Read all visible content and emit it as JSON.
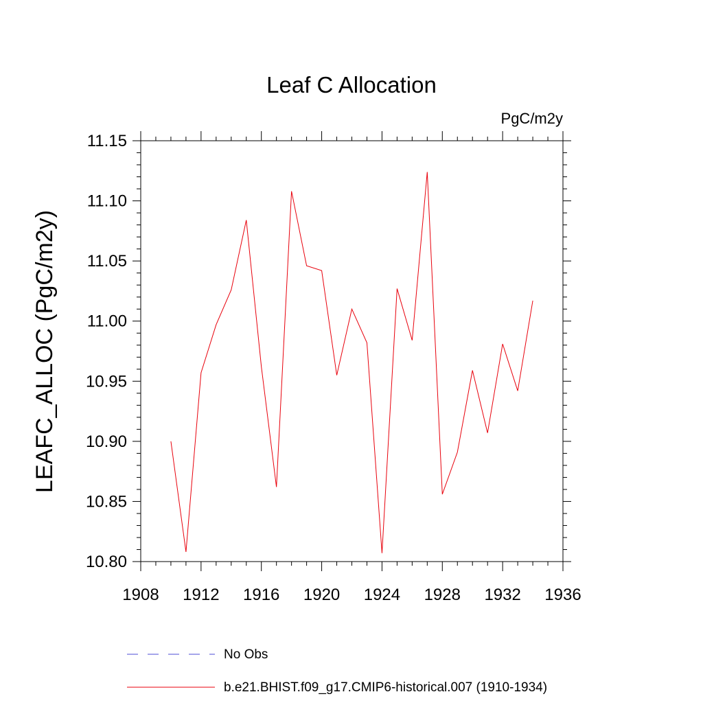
{
  "colors": {
    "series": "#e8000b",
    "obs": "#4b4bd6",
    "axis": "#000000"
  },
  "chart_data": {
    "type": "line",
    "title": "Leaf C Allocation",
    "units": "PgC/m2y",
    "xlabel": "",
    "ylabel": "LEAFC_ALLOC  (PgC/m2y)",
    "xlim": [
      1908,
      1936
    ],
    "ylim": [
      10.8,
      11.15
    ],
    "xticks": [
      "1908",
      "1912",
      "1916",
      "1920",
      "1924",
      "1928",
      "1932",
      "1936"
    ],
    "yticks": [
      "10.80",
      "10.85",
      "10.90",
      "10.95",
      "11.00",
      "11.05",
      "11.10",
      "11.15"
    ],
    "grid": false,
    "series": [
      {
        "name": "b.e21.BHIST.f09_g17.CMIP6-historical.007 (1910-1934)",
        "x": [
          1910,
          1911,
          1912,
          1913,
          1914,
          1915,
          1916,
          1917,
          1918,
          1919,
          1920,
          1921,
          1922,
          1923,
          1924,
          1925,
          1926,
          1927,
          1928,
          1929,
          1930,
          1931,
          1932,
          1933,
          1934
        ],
        "y": [
          10.9,
          10.808,
          10.957,
          10.997,
          11.026,
          11.084,
          10.962,
          10.862,
          11.108,
          11.046,
          11.042,
          10.955,
          11.01,
          10.982,
          10.807,
          11.027,
          10.984,
          11.124,
          10.856,
          10.891,
          10.959,
          10.907,
          10.981,
          10.942,
          11.017
        ]
      }
    ],
    "legend": {
      "position": "bottom",
      "entries": [
        {
          "label": "No Obs",
          "style": "dashed"
        },
        {
          "label": "b.e21.BHIST.f09_g17.CMIP6-historical.007 (1910-1934)",
          "style": "solid"
        }
      ]
    }
  }
}
